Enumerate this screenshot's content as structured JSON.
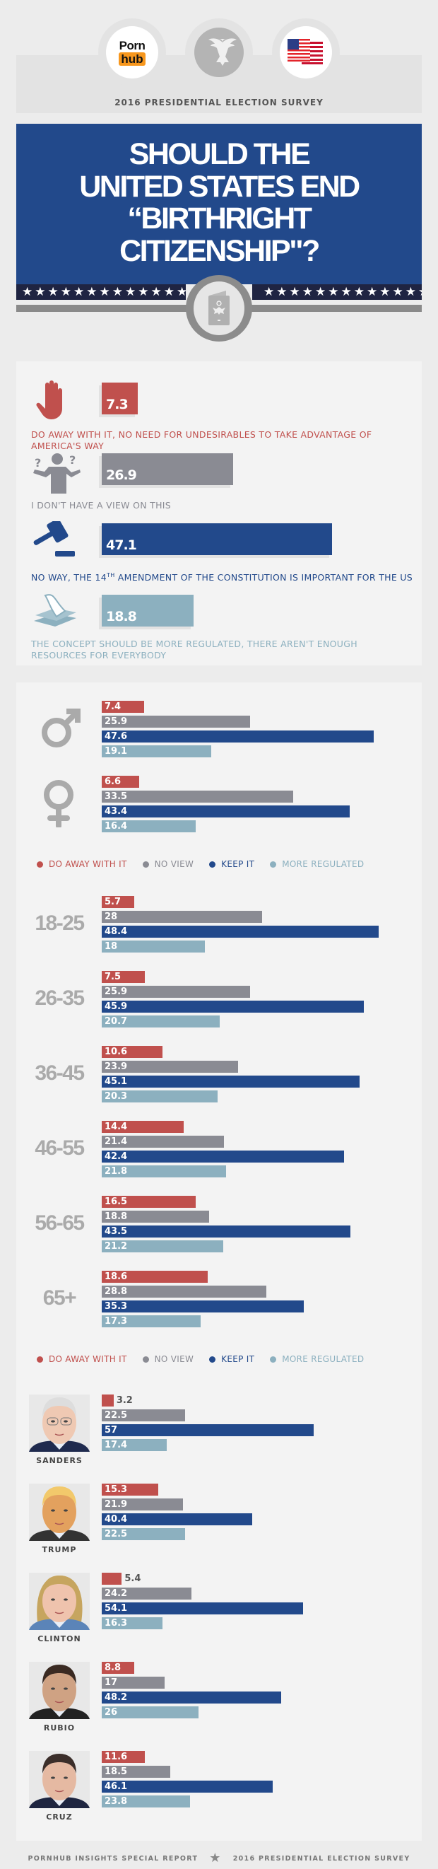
{
  "header": {
    "logo": {
      "word1": "Porn",
      "word2": "hub"
    },
    "icons": [
      "pornhub-logo",
      "presidential-seal-icon",
      "us-flag-icon"
    ],
    "survey_title": "2016 PRESIDENTIAL ELECTION SURVEY"
  },
  "question": {
    "lines": [
      "SHOULD THE",
      "UNITED STATES END",
      "“BIRTHRIGHT",
      "CITIZENSHIP\"?"
    ],
    "icon": "passport-icon"
  },
  "colors": {
    "do_away": "#c0504d",
    "no_view": "#8a8b93",
    "keep": "#22498b",
    "regulated": "#8cb0bf",
    "title_bg": "#22498b",
    "star_strip": "#1f2442"
  },
  "overall": {
    "items": [
      {
        "value": 7.3,
        "icon": "stop-hand-icon",
        "label": "DO AWAY WITH IT, NO NEED FOR UNDESIRABLES TO TAKE ADVANTAGE OF AMERICA'S WAY"
      },
      {
        "value": 26.9,
        "icon": "shrugging-person-icon",
        "label": "I DON'T HAVE A VIEW ON THIS"
      },
      {
        "value": 47.1,
        "icon": "gavel-icon",
        "label_before": "NO WAY, THE 14",
        "label_sup": "TH",
        "label_after": " AMENDMENT OF THE CONSTITUTION IS IMPORTANT FOR THE US"
      },
      {
        "value": 18.8,
        "icon": "papers-icon",
        "label": "THE CONCEPT SHOULD BE MORE REGULATED, THERE AREN'T ENOUGH RESOURCES FOR EVERYBODY"
      }
    ]
  },
  "legend": [
    "DO AWAY WITH IT",
    "NO VIEW",
    "KEEP IT",
    "MORE REGULATED"
  ],
  "chart_data": [
    {
      "type": "bar",
      "orientation": "horizontal",
      "series": [
        "DO AWAY WITH IT",
        "NO VIEW",
        "KEEP IT",
        "MORE REGULATED"
      ],
      "groups": [
        {
          "icon": "male-symbol-icon",
          "values": [
            7.4,
            25.9,
            47.6,
            19.1
          ]
        },
        {
          "icon": "female-symbol-icon",
          "values": [
            6.6,
            33.5,
            43.4,
            16.4
          ]
        }
      ]
    },
    {
      "type": "bar",
      "orientation": "horizontal",
      "series": [
        "DO AWAY WITH IT",
        "NO VIEW",
        "KEEP IT",
        "MORE REGULATED"
      ],
      "groups": [
        {
          "label": "18-25",
          "values": [
            5.7,
            28,
            48.4,
            18
          ]
        },
        {
          "label": "26-35",
          "values": [
            7.5,
            25.9,
            45.9,
            20.7
          ]
        },
        {
          "label": "36-45",
          "values": [
            10.6,
            23.9,
            45.1,
            20.3
          ]
        },
        {
          "label": "46-55",
          "values": [
            14.4,
            21.4,
            42.4,
            21.8
          ]
        },
        {
          "label": "56-65",
          "values": [
            16.5,
            18.8,
            43.5,
            21.2
          ]
        },
        {
          "label": "65+",
          "values": [
            18.6,
            28.8,
            35.3,
            17.3
          ]
        }
      ]
    },
    {
      "type": "bar",
      "orientation": "horizontal",
      "series": [
        "DO AWAY WITH IT",
        "NO VIEW",
        "KEEP IT",
        "MORE REGULATED"
      ],
      "groups": [
        {
          "label": "SANDERS",
          "values": [
            3.2,
            22.5,
            57,
            17.4
          ]
        },
        {
          "label": "TRUMP",
          "values": [
            15.3,
            21.9,
            40.4,
            22.5
          ]
        },
        {
          "label": "CLINTON",
          "values": [
            5.4,
            24.2,
            54.1,
            16.3
          ]
        },
        {
          "label": "RUBIO",
          "values": [
            8.8,
            17,
            48.2,
            26
          ]
        },
        {
          "label": "CRUZ",
          "values": [
            11.6,
            18.5,
            46.1,
            23.8
          ]
        }
      ]
    }
  ],
  "footer": {
    "left": "PORNHUB INSIGHTS SPECIAL REPORT",
    "right": "2016 PRESIDENTIAL ELECTION SURVEY"
  }
}
